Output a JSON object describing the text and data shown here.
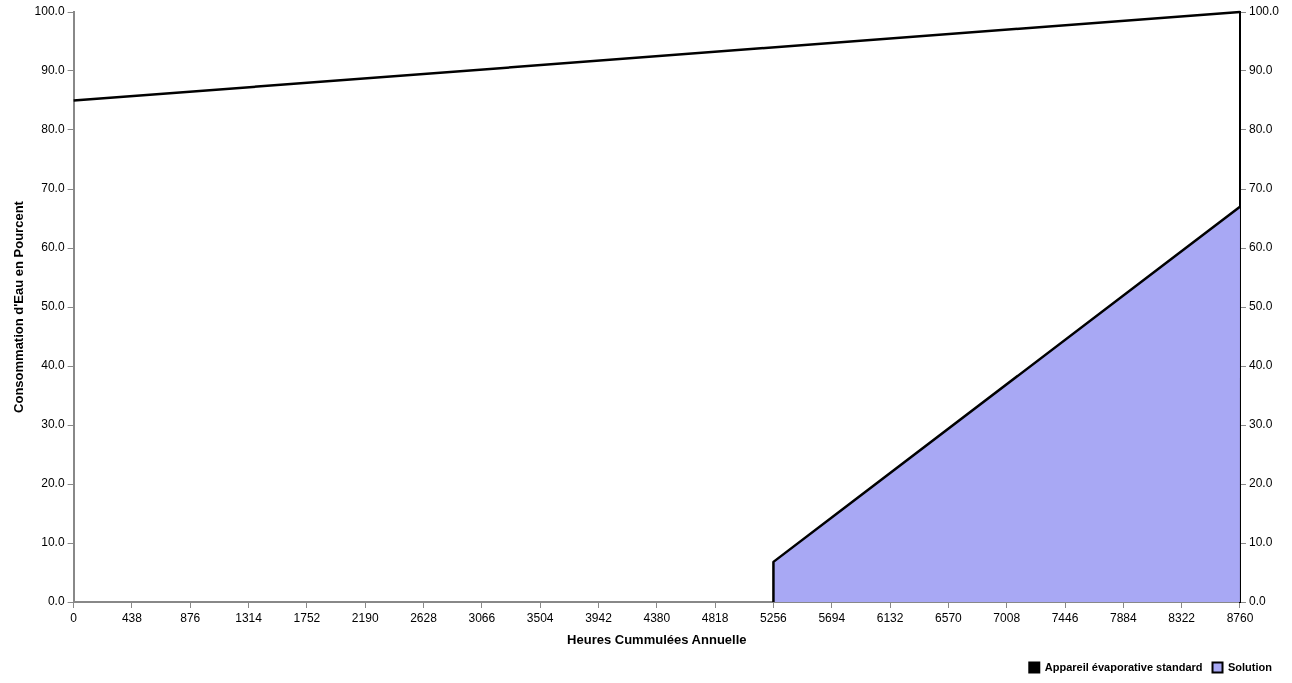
{
  "chart_data": {
    "type": "area",
    "xlabel": "Heures Cummulées Annuelle",
    "ylabel": "Consommation d'Eau en Pourcent",
    "series": [
      {
        "name": "Appareil évaporative standard",
        "type": "line",
        "color": "#000000",
        "x": [
          0,
          8760
        ],
        "values": [
          85,
          100
        ]
      },
      {
        "name": "Solution",
        "color": "#a8a8f4",
        "x": [
          5256,
          5256,
          8760
        ],
        "values": [
          0,
          6.8,
          67.0
        ]
      }
    ],
    "xlim": [
      0,
      8760
    ],
    "xticks": [
      0,
      438,
      876,
      1314,
      1752,
      2190,
      2628,
      3066,
      3504,
      3942,
      4380,
      4818,
      5256,
      5694,
      6132,
      6570,
      7008,
      7446,
      7884,
      8322,
      8760
    ],
    "ylim": [
      0,
      100
    ],
    "yticks": [
      {
        "value": 0,
        "label": "0.0"
      },
      {
        "value": 10,
        "label": "10.0"
      },
      {
        "value": 20,
        "label": "20.0"
      },
      {
        "value": 30,
        "label": "30.0"
      },
      {
        "value": 40,
        "label": "40.0"
      },
      {
        "value": 50,
        "label": "50.0"
      },
      {
        "value": 60,
        "label": "60.0"
      },
      {
        "value": 70,
        "label": "70.0"
      },
      {
        "value": 80,
        "label": "80.0"
      },
      {
        "value": 90,
        "label": "90.0"
      },
      {
        "value": 100,
        "label": "100.0"
      }
    ],
    "y2lim": [
      0,
      100
    ],
    "y2ticks": [
      {
        "value": 0,
        "label": "0.0"
      },
      {
        "value": 10,
        "label": "10.0"
      },
      {
        "value": 20,
        "label": "20.0"
      },
      {
        "value": 30,
        "label": "30.0"
      },
      {
        "value": 40,
        "label": "40.0"
      },
      {
        "value": 50,
        "label": "50.0"
      },
      {
        "value": 60,
        "label": "60.0"
      },
      {
        "value": 70,
        "label": "70.0"
      },
      {
        "value": 80,
        "label": "80.0"
      },
      {
        "value": 90,
        "label": "90.0"
      },
      {
        "value": 100,
        "label": "100.0"
      }
    ],
    "grid": false,
    "legend": "bottom right",
    "marker": "none"
  }
}
